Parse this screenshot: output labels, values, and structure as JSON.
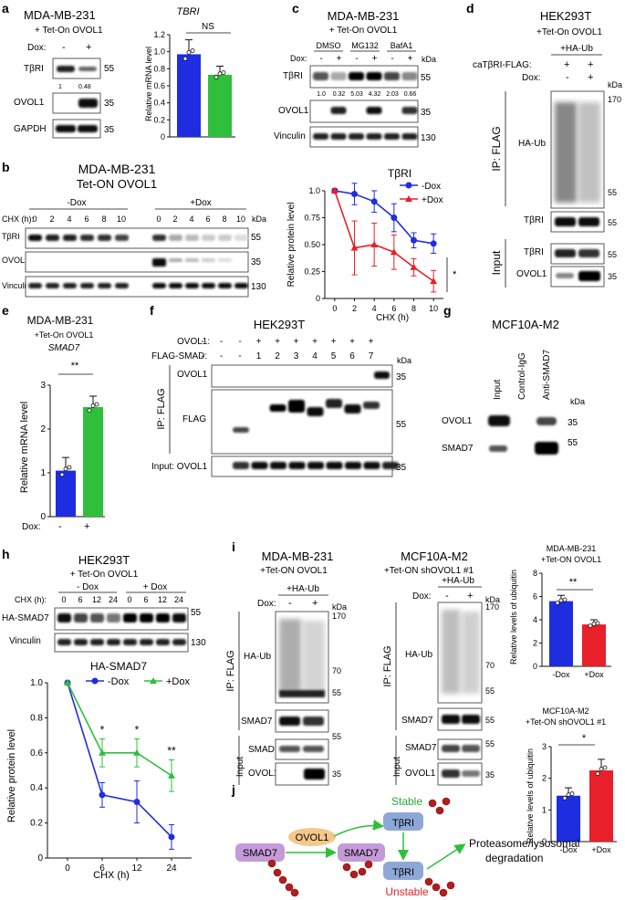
{
  "colors": {
    "blue": "#1f2de0",
    "red": "#e8202a",
    "green": "#2fbf3a",
    "green_text": "#26a83a",
    "red_text": "#e0232c",
    "smad_purple": "#c59ad9",
    "ovol_orange": "#f6c78d",
    "tbri_blue": "#8ea8d6",
    "ub_red": "#b41d1d"
  },
  "panel_a": {
    "letter": "a",
    "title1": "MDA-MB-231",
    "title2": "+ Tet-On OVOL1",
    "dox": "Dox:",
    "minus": "-",
    "plus": "+",
    "tbri": "TβRI",
    "ovol1": "OVOL1",
    "gapdh": "GAPDH",
    "kda55": "55",
    "kda35a": "35",
    "kda35b": "35",
    "q1": "1",
    "q2": "0.48",
    "chart_title": "TBRI",
    "ns": "NS",
    "ylabel": "Relative mRNA level",
    "ticks": [
      "0",
      "0.2",
      "0.4",
      "0.6",
      "0.8",
      "1.0",
      "1.2"
    ]
  },
  "panel_b": {
    "letter": "b",
    "title1": "MDA-MB-231",
    "title2": "Tet-ON OVOL1",
    "minusdox": "-Dox",
    "plusdox": "+Dox",
    "chx": "CHX (h):",
    "times": [
      "0",
      "2",
      "4",
      "6",
      "8",
      "10",
      "0",
      "2",
      "4",
      "6",
      "8",
      "10"
    ],
    "kda": "kDa",
    "tbri": "TβRI",
    "ovol1": "OVOL1",
    "vinculin": "Vinculin",
    "k55": "55",
    "k35": "35",
    "k130": "130",
    "chart_title": "TβRI",
    "legend_minus": "-Dox",
    "legend_plus": "+Dox",
    "ylabel": "Relative protein level",
    "xlabel": "CHX (h)",
    "yticks": [
      "0",
      "0.25",
      "0.50",
      "0.75",
      "1.0"
    ],
    "xticks": [
      "0",
      "2",
      "4",
      "6",
      "8",
      "10"
    ],
    "sig": "*"
  },
  "panel_c": {
    "letter": "c",
    "title1": "MDA-MB-231",
    "title2": "+ Tet-On OVOL1",
    "dmso": "DMSO",
    "mg132": "MG132",
    "bafa1": "BafA1",
    "dox": "Dox:",
    "signs": [
      "-",
      "+",
      "-",
      "+",
      "-",
      "+"
    ],
    "kda": "kDa",
    "tbri": "TβRI",
    "ovol1": "OVOL1",
    "vinculin": "Vinculin",
    "k55": "55",
    "k35": "35",
    "k130": "130",
    "quants": [
      "1.0",
      "0.32",
      "5.03",
      "4.32",
      "2.03",
      "0.66"
    ]
  },
  "panel_d": {
    "letter": "d",
    "title1": "HEK293T",
    "title2": "+Tet-On OVOL1",
    "haub": "+HA-Ub",
    "catbri": "caTβRI-FLAG:",
    "dox": "Dox:",
    "plus": "+",
    "minus": "-",
    "kda": "kDa",
    "ipflag": "IP: FLAG",
    "input": "Input",
    "ha_ub": "HA-Ub",
    "tbri": "TβRI",
    "tbri2": "TβRI",
    "ovol1": "OVOL1",
    "k170": "170",
    "k55": "55",
    "k55b": "55",
    "k55c": "55",
    "k35": "35"
  },
  "panel_e": {
    "letter": "e",
    "title1": "MDA-MB-231",
    "title2": "+Tet-On OVOL1",
    "gene": "SMAD7",
    "sig": "**",
    "ylabel": "Relative mRNA level",
    "dox": "Dox:",
    "minus": "-",
    "plus": "+",
    "ticks": [
      "0",
      "1",
      "2",
      "3"
    ]
  },
  "panel_f": {
    "letter": "f",
    "title": "HEK293T",
    "ovol1": "OVOL1:",
    "flagsmad": "FLAG-SMAD:",
    "ovol_signs": [
      "-",
      "-",
      "+",
      "+",
      "+",
      "+",
      "+",
      "+",
      "+"
    ],
    "smad_nums": [
      "-",
      "-",
      "-",
      "1",
      "2",
      "3",
      "4",
      "5",
      "6",
      "7"
    ],
    "kda": "kDa",
    "ipflag": "IP: FLAG",
    "ovol1_lane": "OVOL1",
    "flag_lane": "FLAG",
    "input": "Input: OVOL1",
    "k35": "35",
    "k55": "55",
    "k35b": "35",
    "first_sign": "-"
  },
  "panel_g": {
    "letter": "g",
    "title": "MCF10A-M2",
    "lanes": [
      "Input",
      "Control-IgG",
      "Anti-SMAD7"
    ],
    "kda": "kDa",
    "ovol1": "OVOL1",
    "smad7": "SMAD7",
    "k35": "35",
    "k55": "55"
  },
  "panel_h": {
    "letter": "h",
    "title1": "HEK293T",
    "title2": "+ Tet-On OVOL1",
    "minusdox": "- Dox",
    "plusdox": "+ Dox",
    "chx": "CHX (h):",
    "times": [
      "0",
      "6",
      "12",
      "24",
      "0",
      "6",
      "12",
      "24"
    ],
    "ha_smad7": "HA-SMAD7",
    "vinculin": "Vinculin",
    "k55": "55",
    "k130": "130",
    "chart_title": "HA-SMAD7",
    "legend_minus": "-Dox",
    "legend_plus": "+Dox",
    "ylabel": "Relative protein level",
    "xlabel": "CHX (h)",
    "yticks": [
      "0",
      "0.2",
      "0.4",
      "0.6",
      "0.8",
      "1.0"
    ],
    "xticks": [
      "0",
      "6",
      "12",
      "24"
    ],
    "sig6": "*",
    "sig12": "*",
    "sig24": "**"
  },
  "panel_i": {
    "letter": "i",
    "left_title1": "MDA-MB-231",
    "left_title2": "+Tet-ON OVOL1",
    "right_title1": "MCF10A-M2",
    "right_title2": "+Tet-ON  shOVOL1 #1",
    "haub": "+HA-Ub",
    "dox": "Dox:",
    "minus": "-",
    "plus": "+",
    "kda": "kDa",
    "ipflag": "IP: FLAG",
    "input": "Input",
    "ha_ub": "HA-Ub",
    "smad7": "SMAD7",
    "ovol1": "OVOL1",
    "k170": "170",
    "k70": "70",
    "k55": "55",
    "k35": "35",
    "bar1_title1": "MDA-MB-231",
    "bar1_title2": "+Tet-ON OVOL1",
    "bar1_sig": "**",
    "bar1_ticks": [
      "0",
      "2",
      "4",
      "6",
      "8"
    ],
    "bar2_title1": "MCF10A-M2",
    "bar2_title2": "+Tet-ON shOVOL1 #1",
    "bar2_sig": "*",
    "bar2_ticks": [
      "0",
      "1",
      "2",
      "3"
    ],
    "ylabel": "Relative levels of ubiquitin",
    "xcat_minus": "-Dox",
    "xcat_plus": "+Dox"
  },
  "panel_j": {
    "letter": "j",
    "smad7": "SMAD7",
    "smad7b": "SMAD7",
    "ovol1": "OVOL1",
    "tbri_top": "TβRI",
    "tbri_bottom": "TβRI",
    "stable": "Stable",
    "unstable": "Unstable",
    "outcome1": "Proteasome/lysosomal",
    "outcome2": "degradation"
  },
  "chart_data": [
    {
      "type": "bar",
      "panel": "a",
      "title": "TBRI",
      "categories": [
        "-",
        "+"
      ],
      "values": [
        0.97,
        0.73
      ],
      "errors": [
        0.17,
        0.1
      ],
      "ylabel": "Relative mRNA level",
      "ylim": [
        0,
        1.2
      ]
    },
    {
      "type": "line",
      "panel": "b",
      "title": "TβRI",
      "x": [
        0,
        2,
        4,
        6,
        8,
        10
      ],
      "series": [
        {
          "name": "-Dox",
          "values": [
            1.0,
            0.97,
            0.9,
            0.75,
            0.54,
            0.51
          ],
          "errors": [
            0.02,
            0.1,
            0.1,
            0.13,
            0.07,
            0.09
          ]
        },
        {
          "name": "+Dox",
          "values": [
            1.0,
            0.47,
            0.5,
            0.43,
            0.29,
            0.16
          ],
          "errors": [
            0.02,
            0.25,
            0.2,
            0.16,
            0.08,
            0.1
          ]
        }
      ],
      "xlabel": "CHX (h)",
      "ylabel": "Relative protein level",
      "ylim": [
        0,
        1.0
      ]
    },
    {
      "type": "bar",
      "panel": "e",
      "title": "SMAD7",
      "categories": [
        "-",
        "+"
      ],
      "values": [
        1.05,
        2.5
      ],
      "errors": [
        0.3,
        0.25
      ],
      "ylabel": "Relative mRNA level",
      "ylim": [
        0,
        3
      ]
    },
    {
      "type": "line",
      "panel": "h",
      "title": "HA-SMAD7",
      "x": [
        0,
        6,
        12,
        24
      ],
      "series": [
        {
          "name": "-Dox",
          "values": [
            1.0,
            0.36,
            0.32,
            0.12
          ],
          "errors": [
            0,
            0.07,
            0.12,
            0.07
          ]
        },
        {
          "name": "+Dox",
          "values": [
            1.0,
            0.6,
            0.6,
            0.47
          ],
          "errors": [
            0,
            0.08,
            0.08,
            0.09
          ]
        }
      ],
      "xlabel": "CHX (h)",
      "ylabel": "Relative protein level",
      "ylim": [
        0,
        1.0
      ]
    },
    {
      "type": "bar",
      "panel": "i-top",
      "title": "MDA-MB-231 +Tet-ON OVOL1",
      "categories": [
        "-Dox",
        "+Dox"
      ],
      "values": [
        5.6,
        3.6
      ],
      "errors": [
        0.5,
        0.4
      ],
      "ylabel": "Relative levels of ubiquitin",
      "ylim": [
        0,
        8
      ]
    },
    {
      "type": "bar",
      "panel": "i-bottom",
      "title": "MCF10A-M2 +Tet-ON shOVOL1 #1",
      "categories": [
        "-Dox",
        "+Dox"
      ],
      "values": [
        1.45,
        2.25
      ],
      "errors": [
        0.25,
        0.35
      ],
      "ylabel": "Relative levels of ubiquitin",
      "ylim": [
        0,
        3
      ]
    }
  ]
}
